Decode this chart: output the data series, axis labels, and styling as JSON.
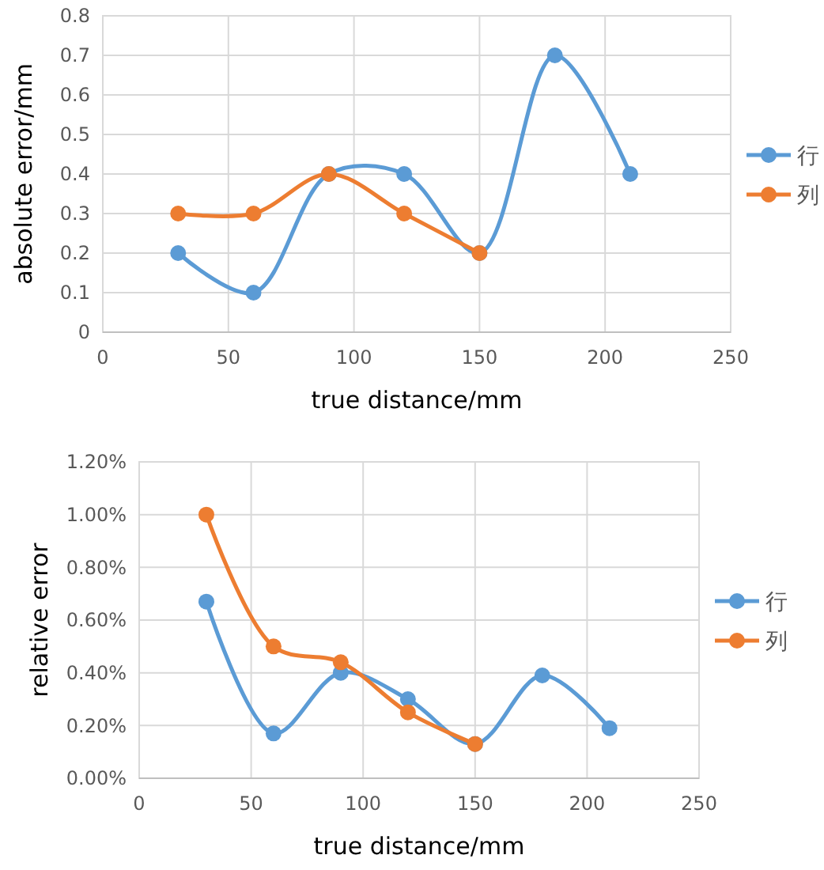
{
  "chart_data": [
    {
      "type": "line",
      "xlabel": "true distance/mm",
      "ylabel": "absolute error/mm",
      "xlim": [
        0,
        250
      ],
      "xticks": [
        0,
        50,
        100,
        150,
        200,
        250
      ],
      "ylim": [
        0,
        0.8
      ],
      "yticks": [
        0,
        0.1,
        0.2,
        0.3,
        0.4,
        0.5,
        0.6,
        0.7,
        0.8
      ],
      "grid": true,
      "legend": "right",
      "marker": "circle",
      "series": [
        {
          "name": "行",
          "color": "#5b9bd5",
          "x": [
            30,
            60,
            90,
            120,
            150,
            180,
            210
          ],
          "values": [
            0.2,
            0.1,
            0.4,
            0.4,
            0.2,
            0.7,
            0.4
          ]
        },
        {
          "name": "列",
          "color": "#ed7d31",
          "x": [
            30,
            60,
            90,
            120,
            150
          ],
          "values": [
            0.3,
            0.3,
            0.4,
            0.3,
            0.2
          ]
        }
      ]
    },
    {
      "type": "line",
      "xlabel": "true distance/mm",
      "ylabel": "relative error",
      "xlim": [
        0,
        250
      ],
      "xticks": [
        0,
        50,
        100,
        150,
        200,
        250
      ],
      "ylim": [
        0,
        1.2
      ],
      "yticks": [
        {
          "value": 0,
          "label": "0.00%"
        },
        {
          "value": 0.2,
          "label": "0.20%"
        },
        {
          "value": 0.4,
          "label": "0.40%"
        },
        {
          "value": 0.6,
          "label": "0.60%"
        },
        {
          "value": 0.8,
          "label": "0.80%"
        },
        {
          "value": 1.0,
          "label": "1.00%"
        },
        {
          "value": 1.2,
          "label": "1.20%"
        }
      ],
      "grid": true,
      "legend": "right",
      "marker": "circle",
      "series": [
        {
          "name": "行",
          "color": "#5b9bd5",
          "x": [
            30,
            60,
            90,
            120,
            150,
            180,
            210
          ],
          "values": [
            0.67,
            0.17,
            0.4,
            0.3,
            0.13,
            0.39,
            0.19
          ]
        },
        {
          "name": "列",
          "color": "#ed7d31",
          "x": [
            30,
            60,
            90,
            120,
            150
          ],
          "values": [
            1.0,
            0.5,
            0.44,
            0.25,
            0.13
          ]
        }
      ]
    }
  ]
}
